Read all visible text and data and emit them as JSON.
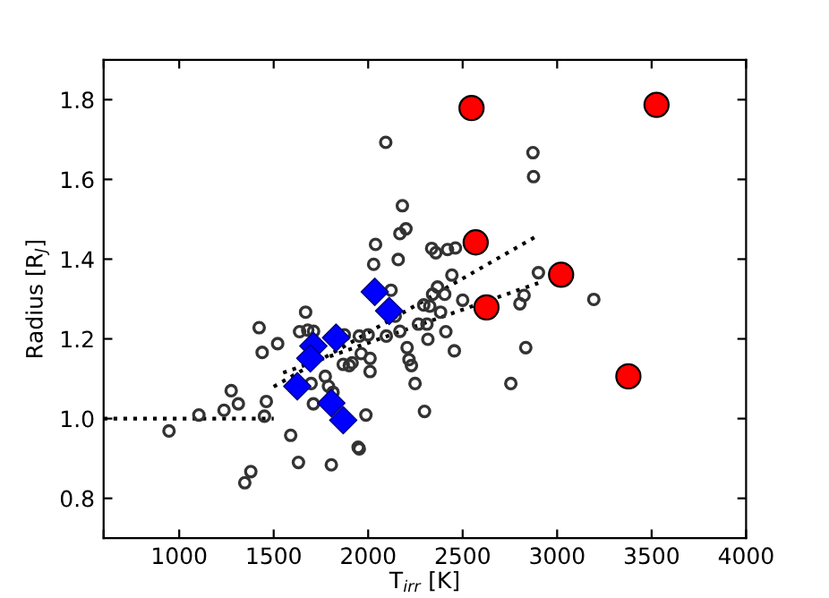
{
  "chart_data": {
    "type": "scatter",
    "xlabel": "T$_{irr}$ [K]",
    "ylabel": "Radius [R$_{J}$]",
    "xlim": [
      600,
      4000
    ],
    "xticks": [
      {
        "value": 600,
        "label": null
      },
      1000,
      1500,
      2000,
      2500,
      3000,
      3500,
      4000
    ],
    "ylim": [
      0.7,
      1.9
    ],
    "yticks": [
      0.8,
      {
        "value": 1.0,
        "label": "1.0"
      },
      1.2,
      1.4,
      1.6,
      1.8
    ],
    "grid": false,
    "legend": false,
    "series": [
      {
        "marker": "circle",
        "color": "#333333",
        "x": [
          946,
          1104,
          1237,
          1275,
          1313,
          1347,
          1379,
          1423,
          1439,
          1451,
          1461,
          1521,
          1590,
          1631,
          1637,
          1669,
          1680,
          1698,
          1710,
          1711,
          1773,
          1790,
          1805,
          1814,
          1868,
          1874,
          1900,
          1915,
          1947,
          1953,
          1953,
          1963,
          1988,
          2000,
          2010,
          2010,
          2029,
          2039,
          2093,
          2121,
          2143,
          2096,
          2159,
          2168,
          2168,
          2181,
          2200,
          2206,
          2216,
          2229,
          2248,
          2266,
          2298,
          2311,
          2316,
          2294,
          2336,
          2341,
          2358,
          2383,
          2405,
          2411,
          2420,
          2443,
          2456,
          2462,
          2367,
          2326,
          2500,
          2755,
          2803,
          2825,
          2834,
          2872,
          2875,
          2901,
          3194
        ],
        "values": [
          0.969,
          1.009,
          1.021,
          1.07,
          1.037,
          0.839,
          0.867,
          1.228,
          1.166,
          1.006,
          1.043,
          1.188,
          0.958,
          0.89,
          1.218,
          1.267,
          1.222,
          1.088,
          1.037,
          1.219,
          1.106,
          1.081,
          0.884,
          1.066,
          1.136,
          1.21,
          1.133,
          1.14,
          0.928,
          0.924,
          1.207,
          1.163,
          1.009,
          1.21,
          1.151,
          1.118,
          1.387,
          1.437,
          1.693,
          1.322,
          1.257,
          1.207,
          1.399,
          1.464,
          1.219,
          1.534,
          1.476,
          1.178,
          1.148,
          1.133,
          1.088,
          1.237,
          1.018,
          1.237,
          1.199,
          1.285,
          1.427,
          1.312,
          1.416,
          1.267,
          1.312,
          1.218,
          1.424,
          1.36,
          1.17,
          1.428,
          1.33,
          1.282,
          1.297,
          1.088,
          1.288,
          1.309,
          1.178,
          1.667,
          1.607,
          1.366,
          1.299
        ]
      },
      {
        "type": "line",
        "line_style": "dotted",
        "color": "#000000",
        "x": [
          600,
          1500
        ],
        "values": [
          1.0,
          1.0
        ]
      },
      {
        "type": "line",
        "line_style": "dotted",
        "color": "#000000",
        "x": [
          1500,
          2900
        ],
        "values": [
          1.08,
          1.46
        ]
      },
      {
        "type": "line",
        "line_style": "dotted",
        "color": "#000000",
        "x": [
          1550,
          2900
        ],
        "values": [
          1.115,
          1.34
        ]
      },
      {
        "marker": "diamond",
        "color": "#0000ff",
        "x": [
          2035,
          2111,
          1830,
          1710,
          1694,
          1625,
          1805,
          1868
        ],
        "values": [
          1.318,
          1.27,
          1.203,
          1.182,
          1.151,
          1.081,
          1.039,
          0.996
        ]
      },
      {
        "marker": "circle",
        "color": "#ff0000",
        "x": [
          2547,
          3526,
          2569,
          3021,
          2626,
          3377
        ],
        "values": [
          1.779,
          1.787,
          1.442,
          1.361,
          1.279,
          1.106
        ]
      }
    ]
  }
}
